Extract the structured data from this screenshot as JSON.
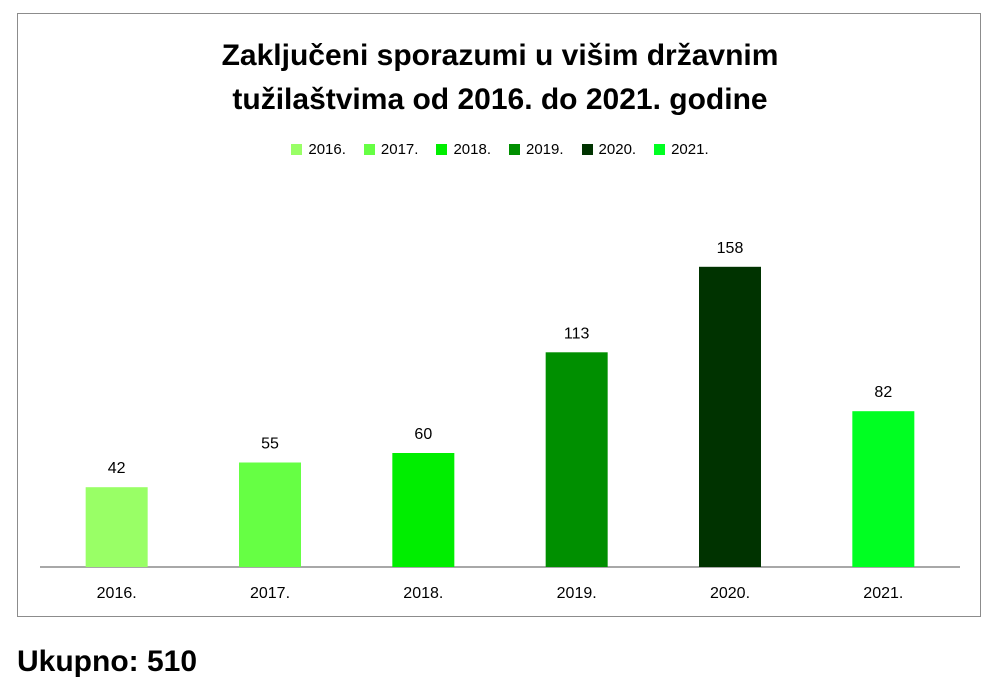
{
  "chart_data": {
    "type": "bar",
    "title_lines": [
      "Zaključeni sporazumi u višim državnim",
      "tužilaštvima od 2016. do 2021. godine"
    ],
    "categories": [
      "2016.",
      "2017.",
      "2018.",
      "2019.",
      "2020.",
      "2021."
    ],
    "values": [
      42,
      55,
      60,
      113,
      158,
      82
    ],
    "colors": [
      "#99ff66",
      "#66ff44",
      "#00ee00",
      "#008f00",
      "#003300",
      "#00ff22"
    ],
    "legend": {
      "placement": "top",
      "entries": [
        "2016.",
        "2017.",
        "2018.",
        "2019.",
        "2020.",
        "2021."
      ]
    },
    "ylim": [
      0,
      180
    ],
    "grid": false,
    "data_labels": true
  },
  "summary": {
    "total_text": "Ukupno: 510"
  }
}
